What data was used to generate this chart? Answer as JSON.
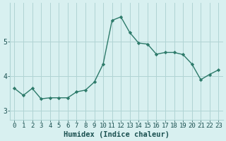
{
  "x": [
    0,
    1,
    2,
    3,
    4,
    5,
    6,
    7,
    8,
    9,
    10,
    11,
    12,
    13,
    14,
    15,
    16,
    17,
    18,
    19,
    20,
    21,
    22,
    23
  ],
  "y": [
    3.65,
    3.45,
    3.65,
    3.35,
    3.38,
    3.38,
    3.38,
    3.55,
    3.6,
    3.83,
    4.35,
    5.6,
    5.7,
    5.25,
    4.95,
    4.92,
    4.63,
    4.68,
    4.68,
    4.62,
    4.35,
    3.9,
    4.05,
    4.18
  ],
  "line_color": "#2d7a6a",
  "marker": "D",
  "marker_size": 2.2,
  "bg_color": "#d8f0f0",
  "grid_color": "#b0d4d4",
  "xlabel": "Humidex (Indice chaleur)",
  "xlabel_fontsize": 7.5,
  "tick_fontsize": 6.5,
  "ylabel_ticks": [
    3,
    4,
    5
  ],
  "xlim": [
    -0.5,
    23.5
  ],
  "ylim": [
    2.75,
    6.1
  ],
  "text_color": "#1a5050"
}
